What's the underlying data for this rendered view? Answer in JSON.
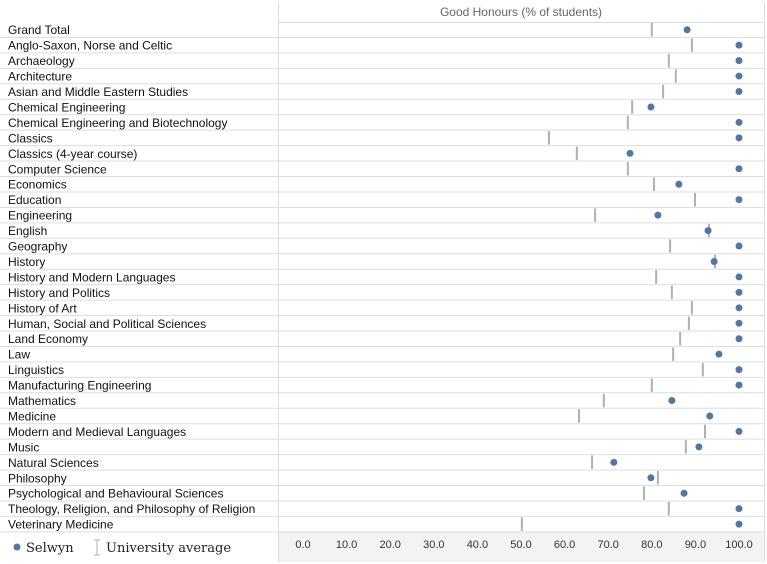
{
  "chart_data": {
    "type": "scatter",
    "title": "Good Honours (% of students)",
    "xlim": [
      0,
      100
    ],
    "xticks": [
      "0.0",
      "10.0",
      "20.0",
      "30.0",
      "40.0",
      "50.0",
      "60.0",
      "70.0",
      "80.0",
      "90.0",
      "100.0"
    ],
    "grid": true,
    "legend_position": "bottom-left",
    "legend": {
      "dot": "Selwyn",
      "bar": "University average"
    },
    "colors": {
      "dot": "#4e79a7",
      "bar": "#b0b0b0"
    },
    "categories": [
      "Grand Total",
      "Anglo-Saxon, Norse and Celtic",
      "Archaeology",
      "Architecture",
      "Asian and Middle Eastern Studies",
      "Chemical Engineering",
      "Chemical Engineering and Biotechnology",
      "Classics",
      "Classics (4-year course)",
      "Computer Science",
      "Economics",
      "Education",
      "Engineering",
      "English",
      "Geography",
      "History",
      "History and Modern Languages",
      "History and Politics",
      "History of Art",
      "Human, Social and Political Sciences",
      "Land Economy",
      "Law",
      "Linguistics",
      "Manufacturing Engineering",
      "Mathematics",
      "Medicine",
      "Modern and Medieval Languages",
      "Music",
      "Natural Sciences",
      "Philosophy",
      "Psychological and Behavioural Sciences",
      "Theology, Religion, and Philosophy of Religion",
      "Veterinary Medicine"
    ],
    "series": [
      {
        "name": "Selwyn",
        "values": [
          88.1,
          100,
          100,
          100,
          100,
          79.8,
          100,
          100,
          75.0,
          100,
          86.2,
          100,
          81.4,
          92.9,
          100,
          94.3,
          100,
          100,
          100,
          100,
          100,
          95.4,
          100,
          100,
          84.6,
          93.3,
          100,
          90.8,
          71.3,
          79.8,
          87.4,
          100,
          100
        ]
      },
      {
        "name": "University average",
        "values": [
          80.0,
          89.2,
          83.9,
          85.5,
          82.6,
          75.5,
          74.5,
          56.4,
          62.8,
          74.5,
          80.5,
          89.9,
          67.0,
          93.1,
          84.2,
          94.5,
          81.0,
          84.6,
          89.2,
          88.5,
          86.5,
          84.9,
          91.7,
          80.0,
          69.0,
          63.3,
          92.2,
          87.8,
          66.3,
          81.4,
          78.2,
          83.9,
          50.2
        ]
      }
    ]
  }
}
